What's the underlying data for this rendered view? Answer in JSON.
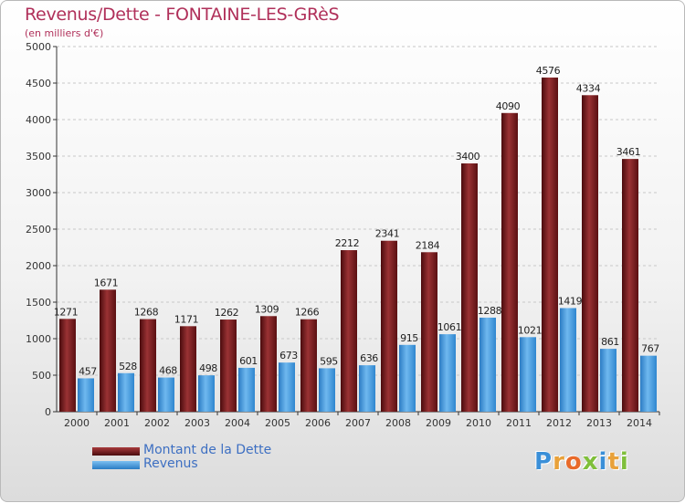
{
  "header": {
    "title": "Revenus/Dette - FONTAINE-LES-GRèS",
    "subtitle": "(en milliers d'€)"
  },
  "colors": {
    "dette": "#6e1517",
    "dette_light": "#a83a3c",
    "revenus": "#3a8fd8",
    "revenus_light": "#7cc0f2",
    "title": "#b0305a",
    "legend_text": "#3d6fc2"
  },
  "chart_data": {
    "type": "bar",
    "categories": [
      "2000",
      "2001",
      "2002",
      "2003",
      "2004",
      "2005",
      "2006",
      "2007",
      "2008",
      "2009",
      "2010",
      "2011",
      "2012",
      "2013",
      "2014"
    ],
    "series": [
      {
        "name": "Montant de la Dette",
        "values": [
          1271,
          1671,
          1268,
          1171,
          1262,
          1309,
          1266,
          2212,
          2341,
          2184,
          3400,
          4090,
          4576,
          4334,
          3461
        ]
      },
      {
        "name": "Revenus",
        "values": [
          457,
          528,
          468,
          498,
          601,
          673,
          595,
          636,
          915,
          1061,
          1288,
          1021,
          1419,
          861,
          767
        ]
      }
    ],
    "yticks": [
      "0",
      "500",
      "1000",
      "1500",
      "2000",
      "2500",
      "3000",
      "3500",
      "4000",
      "4500",
      "5000"
    ],
    "ylim": [
      0,
      5000
    ],
    "grid": true,
    "legend_position": "bottom-left"
  },
  "legend": {
    "items": [
      {
        "label": "Montant de la Dette"
      },
      {
        "label": "Revenus"
      }
    ]
  },
  "logo": {
    "letters": [
      "P",
      "r",
      "o",
      "x",
      "i",
      "t",
      "i"
    ],
    "letter_colors": [
      "#3a8fd8",
      "#e8a13a",
      "#e86a2a",
      "#7fbf3a",
      "#3a8fd8",
      "#e8a13a",
      "#7fbf3a"
    ]
  }
}
